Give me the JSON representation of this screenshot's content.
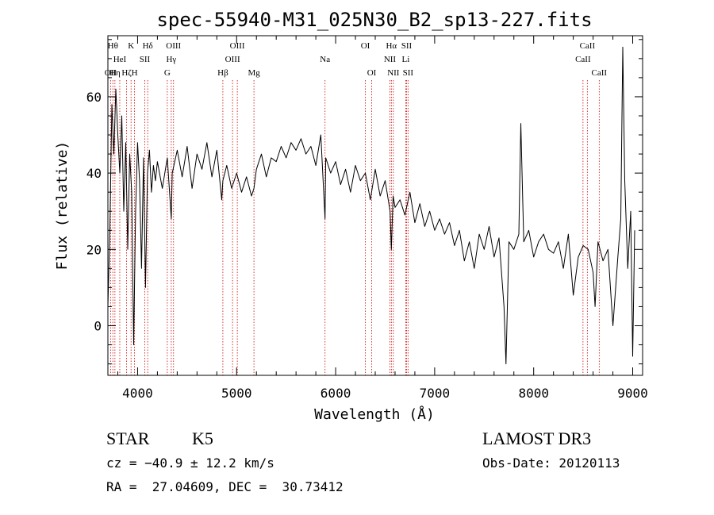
{
  "chart_data": {
    "type": "line",
    "title": "spec-55940-M31_025N30_B2_sp13-227.fits",
    "xlabel": "Wavelength (Å)",
    "ylabel": "Flux (relative)",
    "xlim": [
      3700,
      9100
    ],
    "ylim": [
      -13,
      76
    ],
    "xticks": [
      4000,
      5000,
      6000,
      7000,
      8000,
      9000
    ],
    "yticks": [
      0,
      20,
      40,
      60
    ],
    "line_color": "#000000",
    "marker_color": "#cc0000",
    "series": [
      {
        "x": [
          3700,
          3720,
          3740,
          3760,
          3780,
          3800,
          3820,
          3840,
          3860,
          3880,
          3900,
          3920,
          3940,
          3960,
          3980,
          4000,
          4020,
          4040,
          4060,
          4080,
          4100,
          4120,
          4140,
          4160,
          4180,
          4200,
          4250,
          4300,
          4340,
          4350,
          4400,
          4450,
          4500,
          4550,
          4600,
          4650,
          4700,
          4750,
          4800,
          4850,
          4861,
          4900,
          4950,
          5000,
          5050,
          5100,
          5150,
          5175,
          5200,
          5250,
          5300,
          5350,
          5400,
          5450,
          5500,
          5550,
          5600,
          5650,
          5700,
          5750,
          5800,
          5850,
          5893,
          5900,
          5950,
          6000,
          6050,
          6100,
          6150,
          6200,
          6250,
          6300,
          6350,
          6400,
          6450,
          6500,
          6550,
          6563,
          6580,
          6600,
          6650,
          6700,
          6750,
          6800,
          6850,
          6900,
          6950,
          7000,
          7050,
          7100,
          7150,
          7200,
          7250,
          7300,
          7350,
          7400,
          7450,
          7500,
          7550,
          7600,
          7650,
          7700,
          7720,
          7750,
          7800,
          7850,
          7870,
          7900,
          7950,
          8000,
          8050,
          8100,
          8150,
          8200,
          8250,
          8300,
          8350,
          8400,
          8450,
          8500,
          8550,
          8600,
          8620,
          8650,
          8700,
          8750,
          8800,
          8850,
          8880,
          8900,
          8920,
          8950,
          8980,
          9000,
          9020
        ],
        "y": [
          5,
          25,
          58,
          45,
          62,
          50,
          40,
          55,
          30,
          48,
          20,
          45,
          35,
          -5,
          30,
          48,
          38,
          15,
          44,
          10,
          40,
          46,
          35,
          42,
          38,
          43,
          36,
          44,
          28,
          40,
          46,
          39,
          47,
          36,
          45,
          41,
          48,
          39,
          46,
          33,
          38,
          42,
          36,
          40,
          35,
          39,
          34,
          36,
          41,
          45,
          39,
          44,
          43,
          47,
          44,
          48,
          46,
          49,
          45,
          47,
          42,
          50,
          28,
          44,
          40,
          43,
          37,
          41,
          35,
          42,
          38,
          40,
          33,
          41,
          34,
          38,
          30,
          20,
          34,
          31,
          33,
          29,
          35,
          27,
          32,
          26,
          30,
          25,
          28,
          24,
          27,
          21,
          25,
          17,
          22,
          15,
          24,
          20,
          26,
          18,
          23,
          5,
          -10,
          22,
          20,
          24,
          53,
          22,
          25,
          18,
          22,
          24,
          20,
          19,
          22,
          15,
          24,
          8,
          18,
          21,
          20,
          14,
          5,
          22,
          17,
          20,
          0,
          18,
          28,
          73,
          38,
          15,
          30,
          -8,
          25
        ]
      }
    ],
    "lines": [
      {
        "x": 3727,
        "label": "OII",
        "row": 3
      },
      {
        "x": 3750,
        "label": "Hθ",
        "row": 1
      },
      {
        "x": 3771,
        "label": "Hη",
        "row": 3
      },
      {
        "x": 3820,
        "label": "HeI",
        "row": 2
      },
      {
        "x": 3889,
        "label": "Hζ",
        "row": 3
      },
      {
        "x": 3934,
        "label": "K",
        "row": 1
      },
      {
        "x": 3969,
        "label": "H",
        "row": 3
      },
      {
        "x": 4072,
        "label": "SII",
        "row": 2
      },
      {
        "x": 4102,
        "label": "Hδ",
        "row": 1
      },
      {
        "x": 4300,
        "label": "G",
        "row": 3
      },
      {
        "x": 4340,
        "label": "Hγ",
        "row": 2
      },
      {
        "x": 4363,
        "label": "OIII",
        "row": 1
      },
      {
        "x": 4861,
        "label": "Hβ",
        "row": 3
      },
      {
        "x": 4959,
        "label": "OIII",
        "row": 2
      },
      {
        "x": 5007,
        "label": "OIII",
        "row": 1
      },
      {
        "x": 5175,
        "label": "Mg",
        "row": 3
      },
      {
        "x": 5893,
        "label": "Na",
        "row": 2
      },
      {
        "x": 6300,
        "label": "OI",
        "row": 1
      },
      {
        "x": 6364,
        "label": "OI",
        "row": 3
      },
      {
        "x": 6548,
        "label": "NII",
        "row": 2
      },
      {
        "x": 6563,
        "label": "Hα",
        "row": 1
      },
      {
        "x": 6583,
        "label": "NII",
        "row": 3
      },
      {
        "x": 6708,
        "label": "Li",
        "row": 2
      },
      {
        "x": 6716,
        "label": "SII",
        "row": 1
      },
      {
        "x": 6731,
        "label": "SII",
        "row": 3
      },
      {
        "x": 8498,
        "label": "CaII",
        "row": 2
      },
      {
        "x": 8542,
        "label": "CaII",
        "row": 1
      },
      {
        "x": 8662,
        "label": "CaII",
        "row": 3
      }
    ]
  },
  "info": {
    "class": "STAR",
    "subclass": "K5",
    "survey": "LAMOST DR3",
    "cz": "cz = −40.9 ± 12.2 km/s",
    "obs_date": "Obs-Date: 20120113",
    "radec": "RA =  27.04609, DEC =  30.73412"
  }
}
